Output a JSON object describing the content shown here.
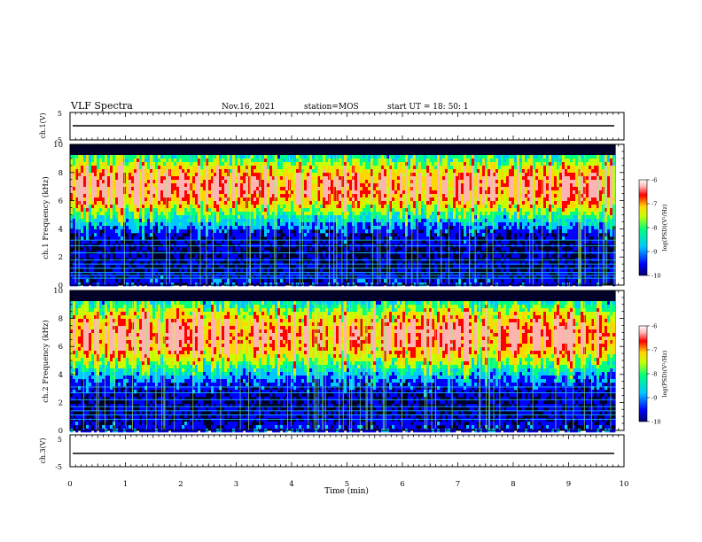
{
  "header": {
    "title": "VLF Spectra",
    "date": "Nov.16, 2021",
    "station": "station=MOS",
    "start_ut": "start  UT  =   18: 50: 1"
  },
  "colors": {
    "spectrogram_scale": [
      "#00006e",
      "#0000ff",
      "#00c8ff",
      "#00ff80",
      "#c8ff00",
      "#ffd700",
      "#ff0000",
      "#ffb4b4",
      "#ffffff"
    ],
    "background": "#ffffff",
    "axis": "#000000"
  },
  "chart_data": [
    {
      "type": "line",
      "name": "ch1-voltage",
      "ylabel": "ch.1(V)",
      "ylim": [
        -5,
        5
      ],
      "yticks": [
        "5",
        "-5"
      ],
      "x": [
        0,
        9.85
      ],
      "values": [
        0,
        0
      ],
      "grid": false
    },
    {
      "type": "heatmap",
      "name": "ch1-spectrogram",
      "ylabel": "ch.1  Frequency (kHz)",
      "ylim": [
        0,
        10
      ],
      "yticks": [
        "0",
        "2",
        "4",
        "6",
        "8",
        "10"
      ],
      "xlim": [
        0,
        9.85
      ],
      "colorbar": {
        "label": "log(PSD)(V²/Hz)",
        "range": [
          -10,
          -6
        ],
        "ticks": [
          "-6",
          "-7",
          "-8",
          "-9",
          "-10"
        ]
      },
      "band_center_khz": 7,
      "band_halfwidth_khz": 2.2,
      "interference_lines_khz": [
        0.5,
        0.7,
        0.9,
        1.2,
        1.5,
        1.8,
        2.3,
        2.8,
        3.2
      ]
    },
    {
      "type": "heatmap",
      "name": "ch2-spectrogram",
      "ylabel": "ch.2  Frequency (kHz)",
      "ylim": [
        0,
        10
      ],
      "yticks": [
        "0",
        "2",
        "4",
        "6",
        "8",
        "10"
      ],
      "xlim": [
        0,
        9.85
      ],
      "colorbar": {
        "label": "log(PSD)(V²/Hz)",
        "range": [
          -10,
          -6
        ],
        "ticks": [
          "-6",
          "-7",
          "-8",
          "-9",
          "-10"
        ]
      },
      "band_center_khz": 6.8,
      "band_halfwidth_khz": 2.4,
      "interference_lines_khz": [
        0.8,
        1.1,
        1.4,
        1.7,
        2.2,
        2.7,
        3.1
      ]
    },
    {
      "type": "line",
      "name": "ch3-voltage",
      "ylabel": "ch.3(V)",
      "ylim": [
        -5,
        5
      ],
      "yticks": [
        "5",
        "-5"
      ],
      "x": [
        0,
        9.85
      ],
      "values": [
        0,
        0
      ],
      "grid": false
    }
  ],
  "xaxis": {
    "label": "Time  (min)",
    "range": [
      0,
      10
    ],
    "ticks": [
      "0",
      "1",
      "2",
      "3",
      "4",
      "5",
      "6",
      "7",
      "8",
      "9",
      "10"
    ]
  }
}
